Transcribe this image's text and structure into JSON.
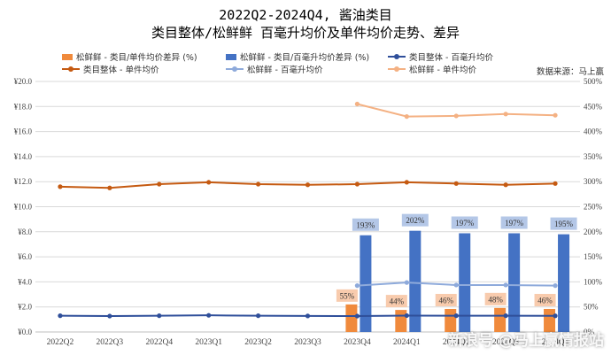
{
  "title_line1": "2022Q2-2024Q4, 酱油类目",
  "title_line2": "类目整体/松鲜鲜 百毫升均价及单件均价走势、差异",
  "source": "数据来源：马上赢",
  "watermark": "新浪号 @马上赢情报站",
  "legend": {
    "bar1": "松鲜鲜 - 类目/单件均价差异 (%)",
    "bar2": "松鲜鲜 - 类目/百毫升均价差异 (%)",
    "line1": "类目整体 - 百毫升均价",
    "line2": "类目整体 - 单件均价",
    "line3": "松鲜鲜 - 百毫升均价",
    "line4": "松鲜鲜 - 单件均价"
  },
  "colors": {
    "bar1": "#F08A3C",
    "bar2": "#4472C4",
    "line1": "#2F4F9A",
    "line2": "#C55A11",
    "line3": "#8EAADB",
    "line4": "#F4B183",
    "label_bar1_bg": "#F8CBAD",
    "label_bar2_bg": "#B4C7E7"
  },
  "chart_data": {
    "type": "bar",
    "categories": [
      "2022Q2",
      "2022Q3",
      "2022Q4",
      "2023Q1",
      "2023Q2",
      "2023Q3",
      "2023Q4",
      "2024Q1",
      "2024Q2",
      "2024Q3",
      "2024Q4"
    ],
    "y_left_ticks": [
      "¥0.0",
      "¥2.0",
      "¥4.0",
      "¥6.0",
      "¥8.0",
      "¥10.0",
      "¥12.0",
      "¥14.0",
      "¥16.0",
      "¥18.0",
      "¥20.0"
    ],
    "y_left_range": [
      0,
      20
    ],
    "y_right_ticks": [
      "0%",
      "50%",
      "100%",
      "150%",
      "200%",
      "250%",
      "300%",
      "350%",
      "400%",
      "450%",
      "500%"
    ],
    "y_right_range": [
      0,
      500
    ],
    "bars": [
      {
        "name": "松鲜鲜 - 类目/单件均价差异 (%)",
        "axis": "right",
        "values": [
          null,
          null,
          null,
          null,
          null,
          null,
          55,
          44,
          46,
          48,
          46
        ],
        "labels": [
          "",
          "",
          "",
          "",
          "",
          "",
          "55%",
          "44%",
          "46%",
          "48%",
          "46%"
        ]
      },
      {
        "name": "松鲜鲜 - 类目/百毫升均价差异 (%)",
        "axis": "right",
        "values": [
          null,
          null,
          null,
          null,
          null,
          null,
          193,
          202,
          197,
          197,
          195
        ],
        "labels": [
          "",
          "",
          "",
          "",
          "",
          "",
          "193%",
          "202%",
          "197%",
          "197%",
          "195%"
        ]
      }
    ],
    "lines": [
      {
        "name": "类目整体 - 百毫升均价",
        "axis": "left",
        "values": [
          1.3,
          1.27,
          1.3,
          1.33,
          1.3,
          1.28,
          1.27,
          1.31,
          1.3,
          1.3,
          1.29
        ]
      },
      {
        "name": "类目整体 - 单件均价",
        "axis": "left",
        "values": [
          11.6,
          11.5,
          11.8,
          11.95,
          11.8,
          11.75,
          11.8,
          11.95,
          11.85,
          11.75,
          11.85
        ]
      },
      {
        "name": "松鲜鲜 - 百毫升均价",
        "axis": "left",
        "values": [
          null,
          null,
          null,
          null,
          null,
          null,
          3.7,
          3.95,
          3.75,
          3.75,
          3.7
        ]
      },
      {
        "name": "松鲜鲜 - 单件均价",
        "axis": "left",
        "values": [
          null,
          null,
          null,
          null,
          null,
          null,
          18.2,
          17.2,
          17.25,
          17.4,
          17.3
        ]
      }
    ]
  }
}
